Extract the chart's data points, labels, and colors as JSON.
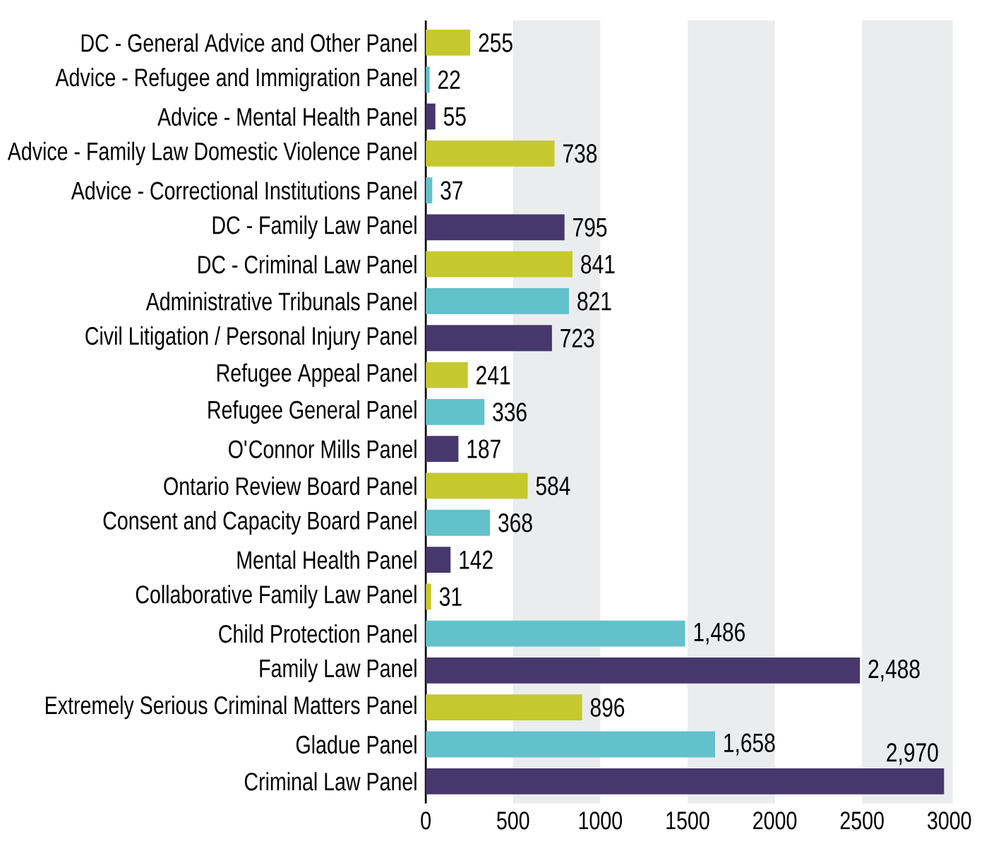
{
  "chart_data": {
    "type": "bar",
    "orientation": "horizontal",
    "categories": [
      "DC - General Advice and Other Panel",
      "Advice - Refugee and Immigration Panel",
      "Advice - Mental Health Panel",
      "Advice - Family Law Domestic Violence Panel",
      "Advice - Correctional Institutions Panel",
      "DC - Family Law Panel",
      "DC - Criminal Law Panel",
      "Administrative Tribunals Panel",
      "Civil Litigation / Personal Injury Panel",
      "Refugee Appeal Panel",
      "Refugee General Panel",
      "O'Connor Mills Panel",
      "Ontario Review Board Panel",
      "Consent and Capacity Board Panel",
      "Mental Health Panel",
      "Collaborative Family Law Panel",
      "Child Protection Panel",
      "Family Law Panel",
      "Extremely Serious Criminal Matters Panel",
      "Gladue Panel",
      "Criminal Law Panel"
    ],
    "values": [
      255,
      22,
      55,
      738,
      37,
      795,
      841,
      821,
      723,
      241,
      336,
      187,
      584,
      368,
      142,
      31,
      1486,
      2488,
      896,
      1658,
      2970
    ],
    "value_labels": [
      "255",
      "22",
      "55",
      "738",
      "37",
      "795",
      "841",
      "821",
      "723",
      "241",
      "336",
      "187",
      "584",
      "368",
      "142",
      "31",
      "1,486",
      "2,488",
      "896",
      "1,658",
      "2,970"
    ],
    "colors": [
      "#c5c92e",
      "#62c1cb",
      "#46386c",
      "#c5c92e",
      "#62c1cb",
      "#46386c",
      "#c5c92e",
      "#62c1cb",
      "#46386c",
      "#c5c92e",
      "#62c1cb",
      "#46386c",
      "#c5c92e",
      "#62c1cb",
      "#46386c",
      "#c5c92e",
      "#62c1cb",
      "#46386c",
      "#c5c92e",
      "#62c1cb",
      "#46386c"
    ],
    "xlim": [
      0,
      3020
    ],
    "xticks": [
      0,
      500,
      1000,
      1500,
      2000,
      2500,
      3000
    ],
    "bands": [
      {
        "axis": "x",
        "from": 500,
        "to": 1000,
        "color": "#ebecee"
      },
      {
        "axis": "x",
        "from": 1500,
        "to": 2000,
        "color": "#ebecee"
      },
      {
        "axis": "x",
        "from": 2500,
        "to": 3020,
        "color": "#ebecee"
      }
    ],
    "grid": false
  }
}
